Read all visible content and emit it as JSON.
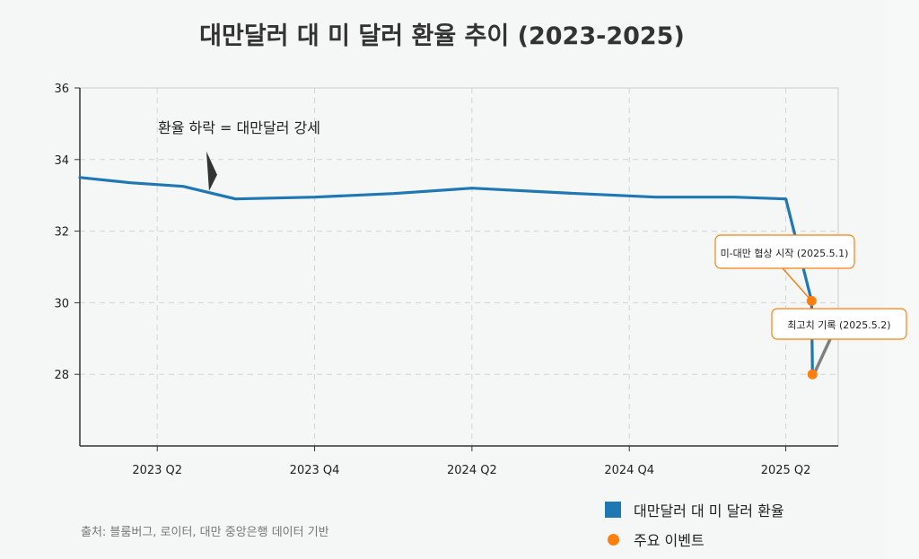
{
  "title": "대만달러 대 미 달러 환율 추이 (2023-2025)",
  "source": "출처: 블룸버그, 로이터, 대만 중앙은행 데이터 기반",
  "legend": {
    "series_label": "대만달러 대 미 달러 환율",
    "events_label": "주요 이벤트"
  },
  "colors": {
    "line": "#1f77b4",
    "event": "#ff7f0e",
    "annotation_border": "#ff7f0e",
    "arrow": "#333333"
  },
  "chart_data": {
    "type": "line",
    "title": "대만달러 대 미 달러 환율 추이 (2023-2025)",
    "xlabel": "",
    "ylabel": "",
    "ylim": [
      26,
      36
    ],
    "yticks": [
      28,
      30,
      32,
      34,
      36
    ],
    "x_tick_labels": [
      "2023 Q2",
      "2023 Q4",
      "2024 Q2",
      "2024 Q4",
      "2025 Q2"
    ],
    "grid": true,
    "legend_position": "bottom-right",
    "series": [
      {
        "name": "대만달러 대 미 달러 환율",
        "x": [
          "2023-01-01",
          "2023-03-01",
          "2023-05-01",
          "2023-07-01",
          "2023-10-01",
          "2024-01-01",
          "2024-04-01",
          "2024-08-01",
          "2024-11-01",
          "2025-02-01",
          "2025-04-01",
          "2025-05-01",
          "2025-05-02"
        ],
        "values": [
          33.5,
          33.35,
          33.25,
          32.9,
          32.95,
          33.05,
          33.2,
          33.05,
          32.95,
          32.95,
          32.9,
          30.05,
          28.0
        ]
      }
    ],
    "events": [
      {
        "label": "미-대만 협상 시작 (2025.5.1)",
        "x": "2025-05-01",
        "y": 30.05
      },
      {
        "label": "최고치 기록 (2025.5.2)",
        "x": "2025-05-02",
        "y": 28.0
      }
    ],
    "annotations": [
      {
        "text": "환율 하락 = 대만달러 강세",
        "x": "2023-05-01",
        "y": 33.2
      }
    ]
  }
}
